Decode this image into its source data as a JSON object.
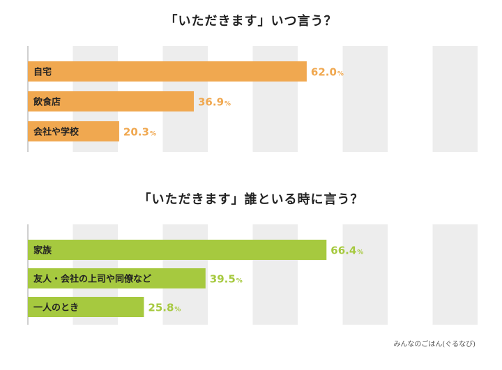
{
  "chart_data": [
    {
      "type": "bar",
      "orientation": "horizontal",
      "title": "「いただきます」いつ言う？",
      "categories": [
        "自宅",
        "飲食店",
        "会社や学校"
      ],
      "values": [
        62.0,
        36.9,
        20.3
      ],
      "value_labels": [
        "62.0",
        "36.9",
        "20.3"
      ],
      "unit": "%",
      "xlim": [
        0,
        100
      ],
      "grid": "alternating-bands",
      "color": "#F0A850"
    },
    {
      "type": "bar",
      "orientation": "horizontal",
      "title": "「いただきます」誰といる時に言う？",
      "categories": [
        "家族",
        "友人・会社の上司や同僚など",
        "一人のとき"
      ],
      "values": [
        66.4,
        39.5,
        25.8
      ],
      "value_labels": [
        "66.4",
        "39.5",
        "25.8"
      ],
      "unit": "%",
      "xlim": [
        0,
        100
      ],
      "grid": "alternating-bands",
      "color": "#A6C93F"
    }
  ],
  "source": "みんなのごはん(ぐるなび)"
}
